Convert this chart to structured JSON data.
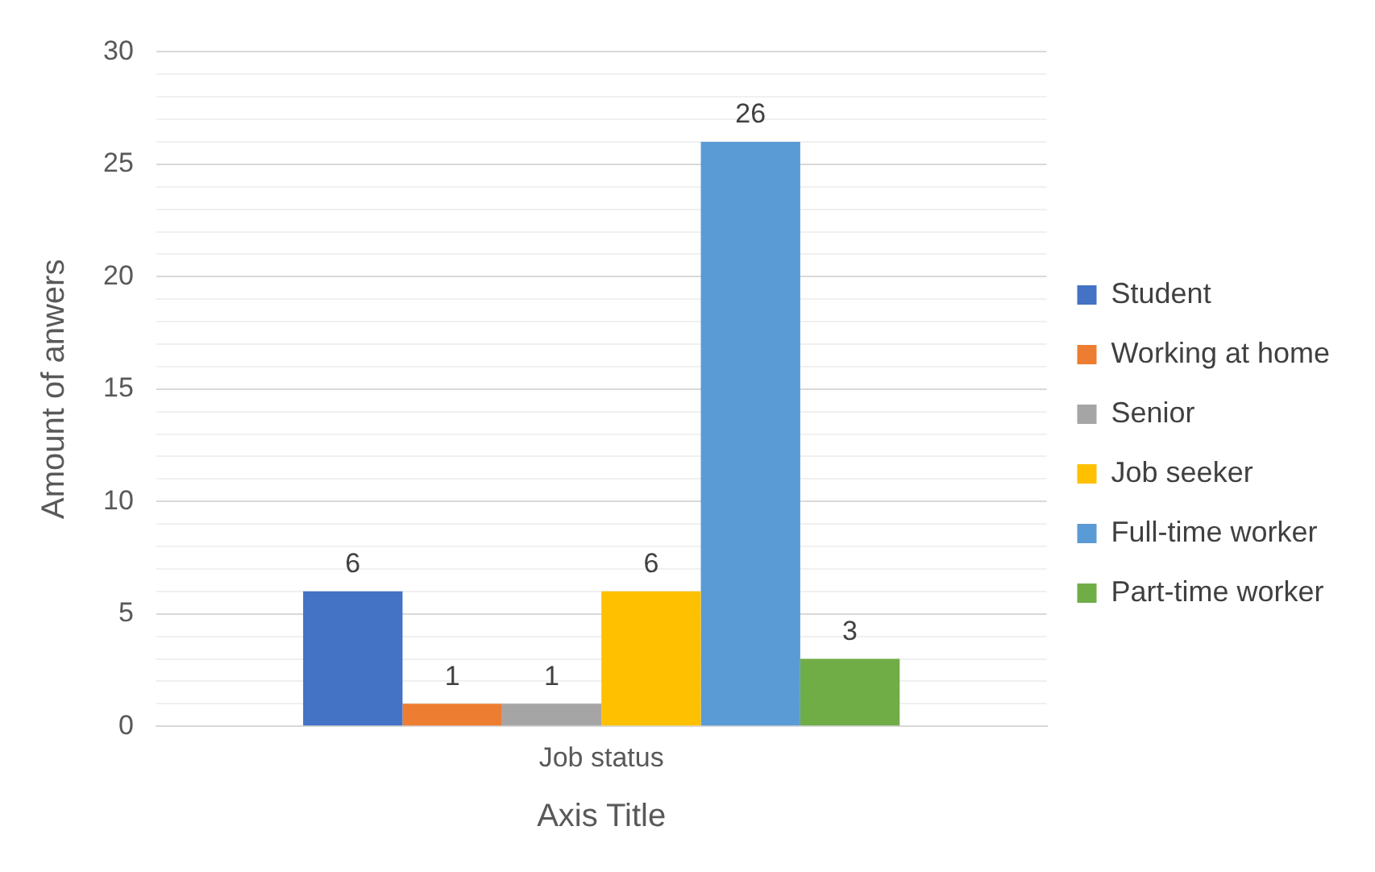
{
  "chart_data": {
    "type": "bar",
    "xlabel": "Axis Title",
    "ylabel": "Amount of anwers",
    "categories": [
      "Job status"
    ],
    "series": [
      {
        "name": "Student",
        "color": "#4472c4",
        "values": [
          6
        ]
      },
      {
        "name": "Working at home",
        "color": "#ed7d31",
        "values": [
          1
        ]
      },
      {
        "name": "Senior",
        "color": "#a5a5a5",
        "values": [
          1
        ]
      },
      {
        "name": "Job seeker",
        "color": "#ffc000",
        "values": [
          6
        ]
      },
      {
        "name": "Full-time worker",
        "color": "#5b9bd5",
        "values": [
          26
        ]
      },
      {
        "name": "Part-time worker",
        "color": "#70ad47",
        "values": [
          3
        ]
      }
    ],
    "ylim": [
      0,
      30
    ],
    "yticks": [
      0,
      {
        "value": 1,
        "label": null
      },
      {
        "value": 2,
        "label": null
      },
      {
        "value": 3,
        "label": null
      },
      {
        "value": 4,
        "label": null
      },
      5,
      {
        "value": 6,
        "label": null
      },
      {
        "value": 7,
        "label": null
      },
      {
        "value": 8,
        "label": null
      },
      {
        "value": 9,
        "label": null
      },
      10,
      {
        "value": 11,
        "label": null
      },
      {
        "value": 12,
        "label": null
      },
      {
        "value": 13,
        "label": null
      },
      {
        "value": 14,
        "label": null
      },
      15,
      {
        "value": 16,
        "label": null
      },
      {
        "value": 17,
        "label": null
      },
      {
        "value": 18,
        "label": null
      },
      {
        "value": 19,
        "label": null
      },
      20,
      {
        "value": 21,
        "label": null
      },
      {
        "value": 22,
        "label": null
      },
      {
        "value": 23,
        "label": null
      },
      {
        "value": 24,
        "label": null
      },
      25,
      {
        "value": 26,
        "label": null
      },
      {
        "value": 27,
        "label": null
      },
      {
        "value": 28,
        "label": null
      },
      {
        "value": 29,
        "label": null
      },
      30
    ],
    "grid": "y",
    "legend": "right",
    "data_labels": true
  }
}
